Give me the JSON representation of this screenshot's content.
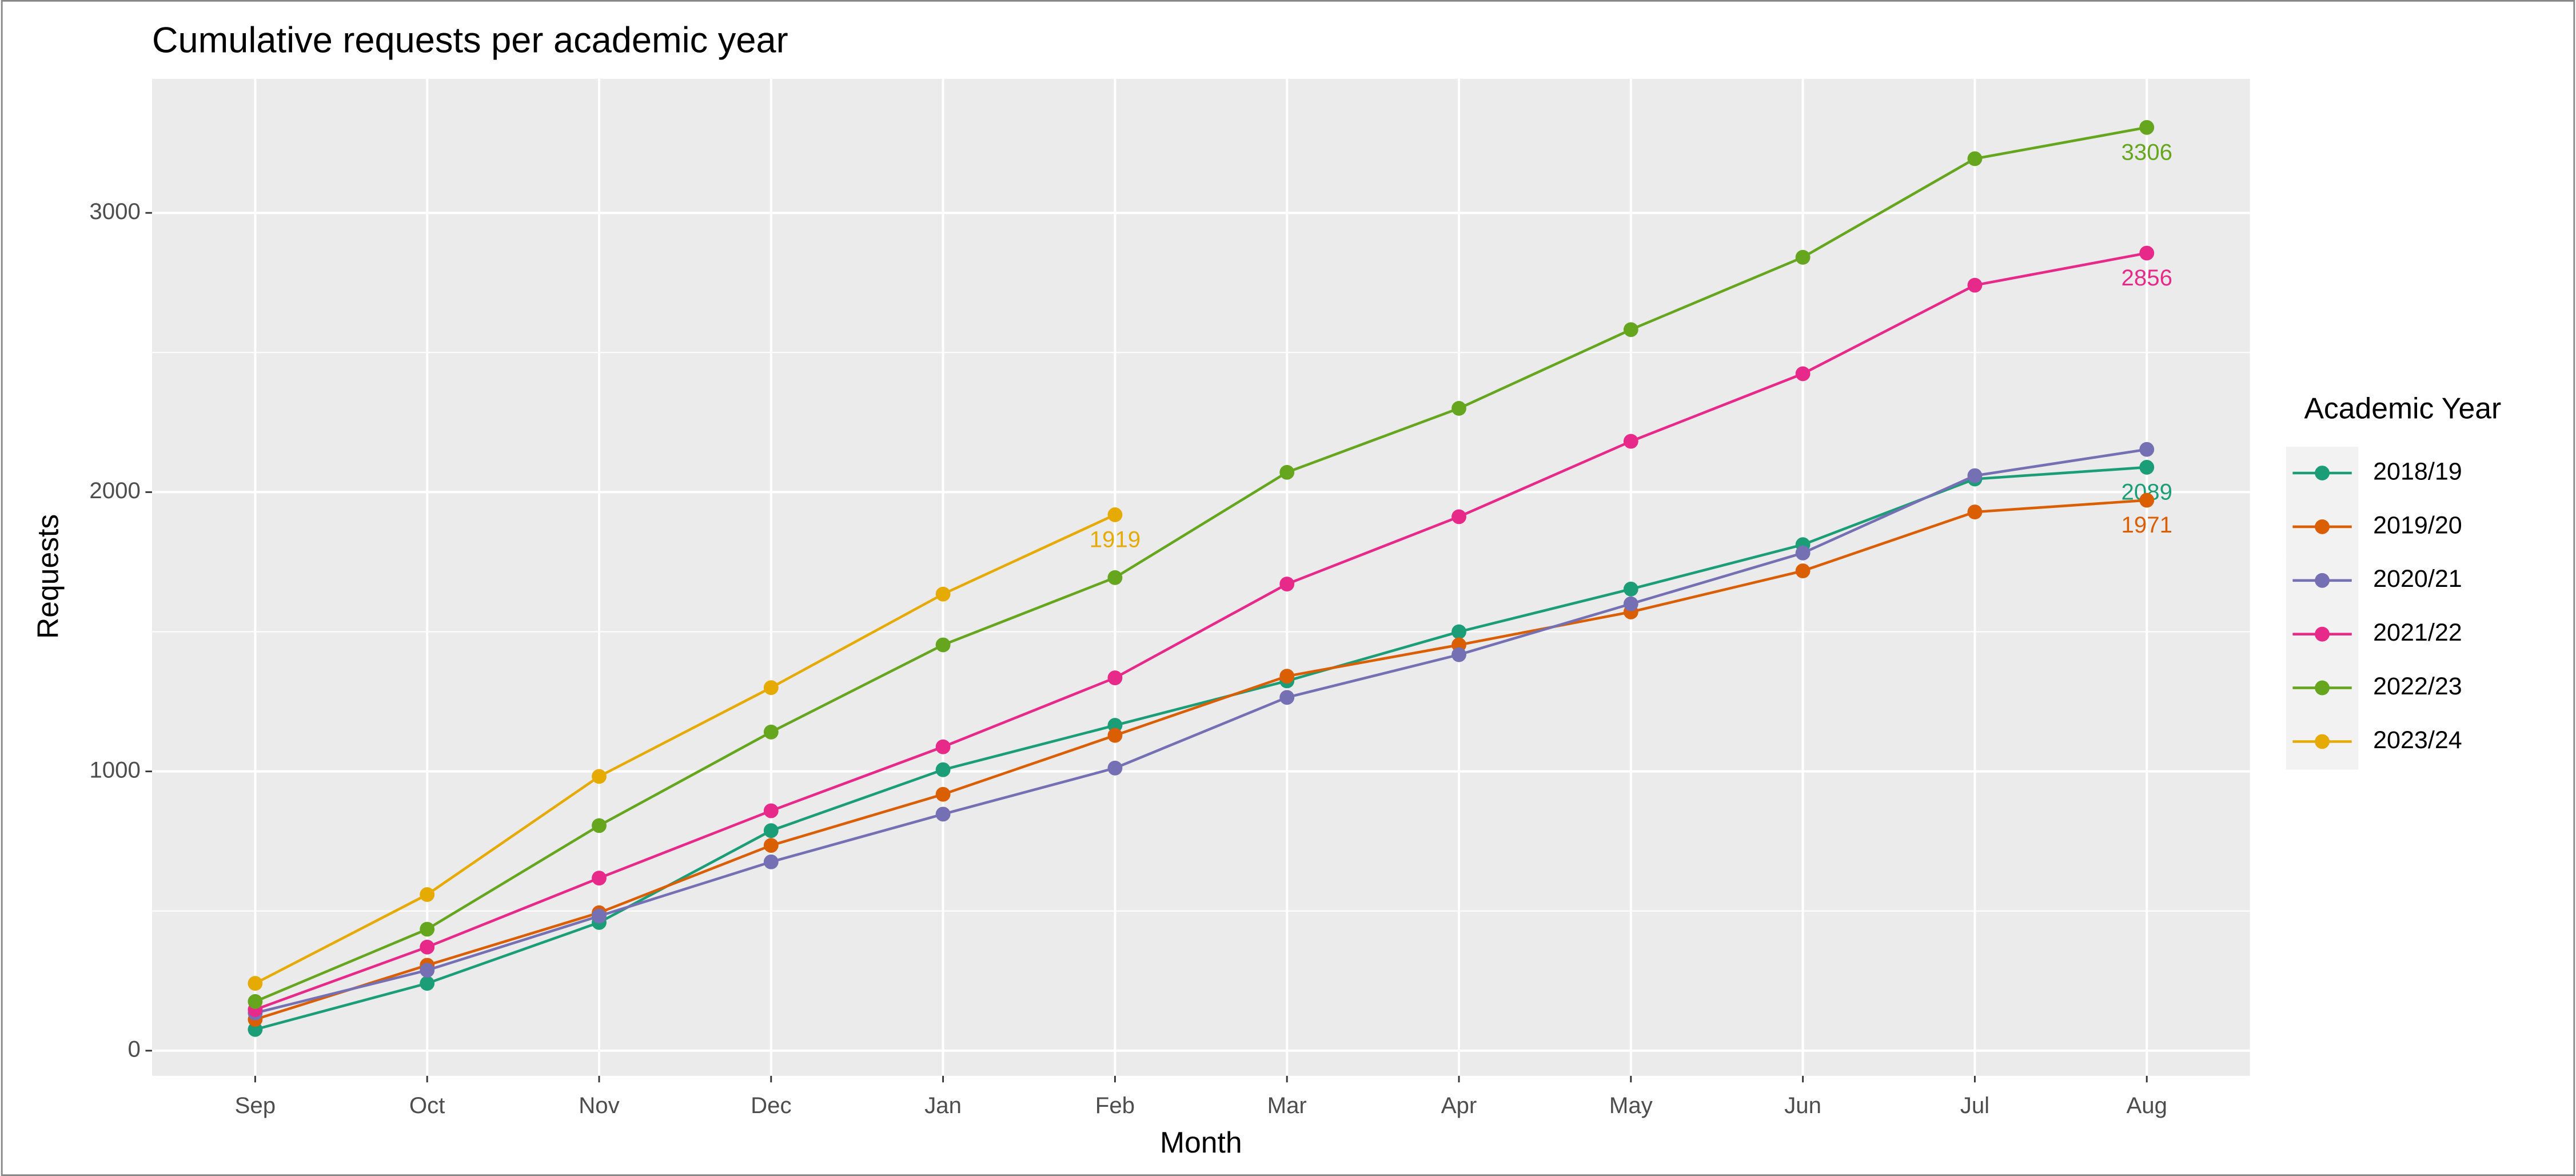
{
  "chart_data": {
    "type": "line",
    "title": "Cumulative requests per academic year",
    "x_label": "Month",
    "y_label": "Requests",
    "legend_title": "Academic Year",
    "legend": "right",
    "grid": true,
    "categories": [
      "Sep",
      "Oct",
      "Nov",
      "Dec",
      "Jan",
      "Feb",
      "Mar",
      "Apr",
      "May",
      "Jun",
      "Jul",
      "Aug"
    ],
    "ylim": [
      -90,
      3480
    ],
    "yticks": [
      0,
      1000,
      2000,
      3000
    ],
    "yminorticks": [
      500,
      1500,
      2500
    ],
    "series": [
      {
        "name": "2018/19",
        "color": "#1b9e77",
        "label_last": true,
        "values": [
          76,
          241,
          459,
          788,
          1006,
          1165,
          1324,
          1500,
          1653,
          1812,
          2047,
          2089
        ]
      },
      {
        "name": "2019/20",
        "color": "#d95f02",
        "label_last": true,
        "values": [
          112,
          306,
          494,
          735,
          918,
          1129,
          1341,
          1453,
          1571,
          1718,
          1929,
          1971
        ]
      },
      {
        "name": "2020/21",
        "color": "#7570b3",
        "label_last": false,
        "values": [
          135,
          288,
          482,
          676,
          847,
          1012,
          1265,
          1418,
          1600,
          1782,
          2059,
          2153
        ]
      },
      {
        "name": "2021/22",
        "color": "#e7298a",
        "label_last": true,
        "values": [
          147,
          371,
          618,
          859,
          1088,
          1335,
          1671,
          1912,
          2182,
          2424,
          2741,
          2856
        ]
      },
      {
        "name": "2022/23",
        "color": "#66a61e",
        "label_last": true,
        "values": [
          176,
          435,
          806,
          1141,
          1453,
          1694,
          2071,
          2300,
          2582,
          2841,
          3194,
          3306
        ]
      },
      {
        "name": "2023/24",
        "color": "#e6ab02",
        "label_last": true,
        "values": [
          241,
          559,
          982,
          1300,
          1635,
          1919,
          null,
          null,
          null,
          null,
          null,
          null
        ]
      }
    ]
  }
}
